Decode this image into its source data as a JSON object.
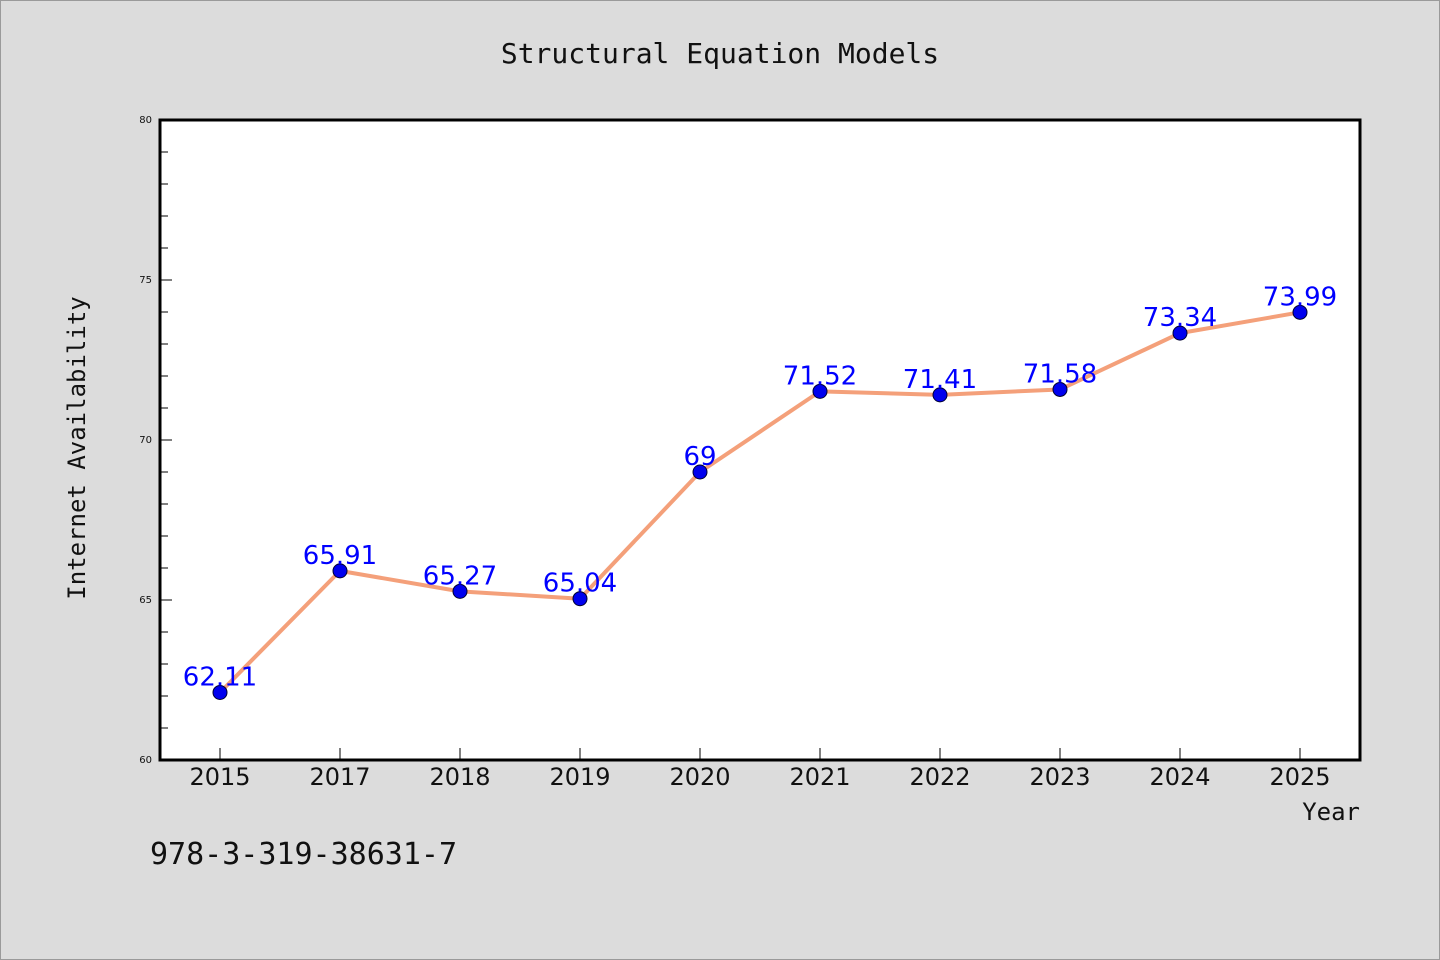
{
  "chart_data": {
    "type": "line",
    "title": "Structural Equation Models",
    "xlabel": "Year",
    "ylabel": "Internet Availability",
    "categories": [
      "2015",
      "2017",
      "2018",
      "2019",
      "2020",
      "2021",
      "2022",
      "2023",
      "2024",
      "2025"
    ],
    "series": [
      {
        "values": [
          62.11,
          65.91,
          65.27,
          65.04,
          69,
          71.52,
          71.41,
          71.58,
          73.34,
          73.99
        ],
        "labels": [
          "62.11",
          "65.91",
          "65.27",
          "65.04",
          "69",
          "71.52",
          "71.41",
          "71.58",
          "73.34",
          "73.99"
        ]
      }
    ],
    "ylim": [
      60,
      80
    ],
    "yticks": [
      "60",
      "65",
      "70",
      "75",
      "80"
    ],
    "grid": false,
    "line_color": "#f4a07a",
    "marker_color": "#0000ee",
    "label_color": "#0000ff",
    "plot_background": "#ffffff",
    "figure_background": "#dcdcdc"
  },
  "footer": {
    "isbn": "978-3-319-38631-7"
  }
}
